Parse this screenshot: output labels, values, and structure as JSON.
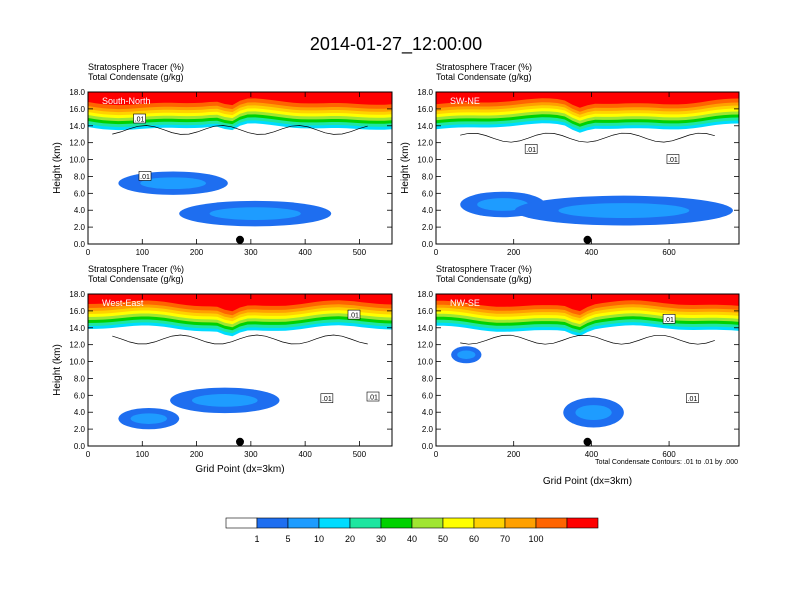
{
  "figure": {
    "title": "2014-01-27_12:00:00",
    "contour_note": "Total Condensate Contours: .01 to .01 by .000",
    "colors": {
      "levels": [
        "#ffffff",
        "#1e6ef0",
        "#1e9cff",
        "#00dcff",
        "#1ee6a0",
        "#00d200",
        "#a0e632",
        "#ffff00",
        "#ffd200",
        "#ffa000",
        "#ff6400",
        "#ff0000"
      ],
      "dot": "#000000",
      "contour": "#000000"
    }
  },
  "colorbar": {
    "labels": [
      "1",
      "5",
      "10",
      "20",
      "30",
      "40",
      "50",
      "60",
      "70",
      "100"
    ]
  },
  "chart_data": [
    {
      "type": "heatmap",
      "panel": "South-North",
      "title_line1": "Stratosphere Tracer   (%)",
      "title_line2": "Total Condensate   (g/kg)",
      "ylabel": "Height (km)",
      "xlabel": "",
      "xlim": [
        0,
        560
      ],
      "ylim": [
        0,
        18
      ],
      "xticks": [
        0,
        100,
        200,
        300,
        400,
        500
      ],
      "yticks": [
        "0.0",
        "2.0",
        "4.0",
        "6.0",
        "8.0",
        "10.0",
        "12.0",
        "14.0",
        "16.0",
        "18.0"
      ],
      "marker_x": 280,
      "contour_labels": [
        {
          "x": 95,
          "y": 14.8,
          "text": ".01"
        },
        {
          "x": 105,
          "y": 8.0,
          "text": ".01"
        }
      ]
    },
    {
      "type": "heatmap",
      "panel": "SW-NE",
      "title_line1": "Stratosphere Tracer   (%)",
      "title_line2": "Total Condensate   (g/kg)",
      "ylabel": "Height (km)",
      "xlabel": "",
      "xlim": [
        0,
        780
      ],
      "ylim": [
        0,
        18
      ],
      "xticks": [
        0,
        200,
        400,
        600
      ],
      "yticks": [
        "0.0",
        "2.0",
        "4.0",
        "6.0",
        "8.0",
        "10.0",
        "12.0",
        "14.0",
        "16.0",
        "18.0"
      ],
      "marker_x": 390,
      "contour_labels": [
        {
          "x": 245,
          "y": 11.2,
          "text": ".01"
        },
        {
          "x": 610,
          "y": 10.0,
          "text": ".01"
        }
      ]
    },
    {
      "type": "heatmap",
      "panel": "West-East",
      "title_line1": "Stratosphere Tracer   (%)",
      "title_line2": "Total Condensate   (g/kg)",
      "ylabel": "Height (km)",
      "xlabel": "Grid Point (dx=3km)",
      "xlim": [
        0,
        560
      ],
      "ylim": [
        0,
        18
      ],
      "xticks": [
        0,
        100,
        200,
        300,
        400,
        500
      ],
      "yticks": [
        "0.0",
        "2.0",
        "4.0",
        "6.0",
        "8.0",
        "10.0",
        "12.0",
        "14.0",
        "16.0",
        "18.0"
      ],
      "marker_x": 280,
      "contour_labels": [
        {
          "x": 490,
          "y": 15.5,
          "text": ".01"
        },
        {
          "x": 440,
          "y": 5.6,
          "text": ".01"
        },
        {
          "x": 525,
          "y": 5.8,
          "text": ".01"
        }
      ]
    },
    {
      "type": "heatmap",
      "panel": "NW-SE",
      "title_line1": "Stratosphere Tracer   (%)",
      "title_line2": "Total Condensate   (g/kg)",
      "ylabel": "",
      "xlabel": "Grid Point (dx=3km)",
      "xlim": [
        0,
        780
      ],
      "ylim": [
        0,
        18
      ],
      "xticks": [
        0,
        200,
        400,
        600
      ],
      "yticks": [
        "0.0",
        "2.0",
        "4.0",
        "6.0",
        "8.0",
        "10.0",
        "12.0",
        "14.0",
        "16.0",
        "18.0"
      ],
      "marker_x": 390,
      "contour_labels": [
        {
          "x": 600,
          "y": 15.0,
          "text": ".01"
        },
        {
          "x": 660,
          "y": 5.6,
          "text": ".01"
        }
      ]
    }
  ]
}
